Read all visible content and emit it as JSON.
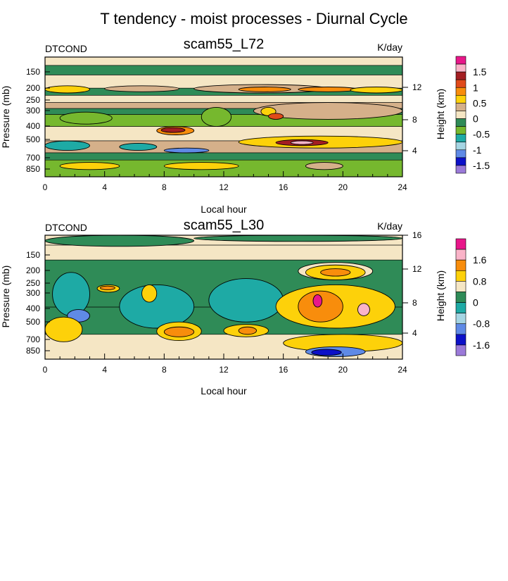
{
  "figure": {
    "title": "T tendency - moist processes - Diurnal Cycle"
  },
  "chart_data": [
    {
      "type": "heatmap",
      "title": "scam55_L72",
      "left_label": "DTCOND",
      "units": "K/day",
      "xlabel": "Local hour",
      "ylabel": "Pressure (mb)",
      "y2label": "Height (km)",
      "xlim": [
        0,
        24
      ],
      "x_ticks": [
        "0",
        "4",
        "8",
        "12",
        "16",
        "20",
        "24"
      ],
      "y_ticks": [
        "150",
        "200",
        "250",
        "300",
        "400",
        "500",
        "700",
        "850"
      ],
      "y2_ticks": [
        "12",
        "8",
        "4"
      ],
      "colorbar": {
        "labels": [
          "1.5",
          "1",
          "0.5",
          "0",
          "-0.5",
          "-1",
          "-1.5"
        ],
        "colors": [
          "#e8178a",
          "#fab3c8",
          "#a31e22",
          "#e04a1a",
          "#f88d0c",
          "#fdd10a",
          "#d5b08a",
          "#f5e6c4",
          "#2f8b57",
          "#76b82e",
          "#1eaaa5",
          "#a5d5e3",
          "#5f8ae6",
          "#0c10c8",
          "#9b7ad9"
        ]
      },
      "regions": [
        {
          "x": 0,
          "y": 0.0,
          "w": 24,
          "h": 0.07,
          "level": 0
        },
        {
          "x": 0,
          "y": 0.07,
          "w": 24,
          "h": 0.08,
          "level": -1
        },
        {
          "x": 0,
          "y": 0.15,
          "w": 24,
          "h": 0.11,
          "level": 0
        },
        {
          "x": 0,
          "y": 0.26,
          "w": 24,
          "h": 0.06,
          "level": -1
        },
        {
          "x": 0,
          "y": 0.32,
          "w": 24,
          "h": 0.06,
          "level": 0
        },
        {
          "x": 0,
          "y": 0.38,
          "w": 24,
          "h": 0.05,
          "level": 1
        },
        {
          "x": 0,
          "y": 0.43,
          "w": 24,
          "h": 0.05,
          "level": -1
        },
        {
          "x": 0,
          "y": 0.48,
          "w": 24,
          "h": 0.1,
          "level": -2
        },
        {
          "x": 0,
          "y": 0.58,
          "w": 24,
          "h": 0.12,
          "level": 0
        },
        {
          "x": 0,
          "y": 0.7,
          "w": 24,
          "h": 0.1,
          "level": 1
        },
        {
          "x": 0,
          "y": 0.8,
          "w": 24,
          "h": 0.2,
          "level": -1
        },
        {
          "x": 0.0,
          "y": 0.24,
          "w": 3.0,
          "h": 0.06,
          "level": 2
        },
        {
          "x": 4.0,
          "y": 0.24,
          "w": 5.0,
          "h": 0.05,
          "level": 1
        },
        {
          "x": 10.0,
          "y": 0.23,
          "w": 9.0,
          "h": 0.07,
          "level": 1
        },
        {
          "x": 13.0,
          "y": 0.25,
          "w": 3.5,
          "h": 0.04,
          "level": 3
        },
        {
          "x": 17.0,
          "y": 0.25,
          "w": 4.0,
          "h": 0.04,
          "level": 3
        },
        {
          "x": 20.5,
          "y": 0.25,
          "w": 3.5,
          "h": 0.05,
          "level": 2
        },
        {
          "x": 1.0,
          "y": 0.46,
          "w": 3.5,
          "h": 0.1,
          "level": -2
        },
        {
          "x": 10.5,
          "y": 0.42,
          "w": 2.0,
          "h": 0.16,
          "level": -2
        },
        {
          "x": 14.0,
          "y": 0.38,
          "w": 10.0,
          "h": 0.14,
          "level": 1
        },
        {
          "x": 14.5,
          "y": 0.42,
          "w": 1.0,
          "h": 0.07,
          "level": 2
        },
        {
          "x": 7.5,
          "y": 0.58,
          "w": 2.5,
          "h": 0.07,
          "level": 3
        },
        {
          "x": 7.8,
          "y": 0.59,
          "w": 1.6,
          "h": 0.04,
          "level": 5
        },
        {
          "x": 15.0,
          "y": 0.47,
          "w": 1.0,
          "h": 0.05,
          "level": 4
        },
        {
          "x": 0.0,
          "y": 0.7,
          "w": 3.0,
          "h": 0.08,
          "level": -3
        },
        {
          "x": 5.0,
          "y": 0.72,
          "w": 2.5,
          "h": 0.06,
          "level": -3
        },
        {
          "x": 8.0,
          "y": 0.76,
          "w": 3.0,
          "h": 0.04,
          "level": -5
        },
        {
          "x": 13.0,
          "y": 0.66,
          "w": 11.0,
          "h": 0.1,
          "level": 2
        },
        {
          "x": 15.5,
          "y": 0.69,
          "w": 3.5,
          "h": 0.05,
          "level": 5
        },
        {
          "x": 16.5,
          "y": 0.7,
          "w": 1.5,
          "h": 0.03,
          "level": 6
        },
        {
          "x": 0.0,
          "y": 0.86,
          "w": 24.0,
          "h": 0.14,
          "level": -2
        },
        {
          "x": 1.0,
          "y": 0.88,
          "w": 4.0,
          "h": 0.06,
          "level": 2
        },
        {
          "x": 8.0,
          "y": 0.88,
          "w": 5.0,
          "h": 0.06,
          "level": 2
        },
        {
          "x": 17.5,
          "y": 0.88,
          "w": 2.5,
          "h": 0.06,
          "level": 1
        }
      ]
    },
    {
      "type": "heatmap",
      "title": "scam55_L30",
      "left_label": "DTCOND",
      "units": "K/day",
      "xlabel": "Local hour",
      "ylabel": "Pressure (mb)",
      "y2label": "Height (km)",
      "xlim": [
        0,
        24
      ],
      "x_ticks": [
        "0",
        "4",
        "8",
        "12",
        "16",
        "20",
        "24"
      ],
      "y_ticks": [
        "150",
        "200",
        "250",
        "300",
        "400",
        "500",
        "700",
        "850"
      ],
      "y2_ticks": [
        "16",
        "12",
        "8",
        "4"
      ],
      "colorbar": {
        "labels": [
          "1.6",
          "0.8",
          "0",
          "-0.8",
          "-1.6"
        ],
        "colors": [
          "#e8178a",
          "#fab3c8",
          "#f88d0c",
          "#fdd10a",
          "#f5e6c4",
          "#2f8b57",
          "#1eaaa5",
          "#a5d5e3",
          "#5f8ae6",
          "#0c10c8",
          "#9b7ad9"
        ]
      },
      "regions": [
        {
          "x": 0,
          "y": 0.0,
          "w": 24,
          "h": 0.08,
          "level": 0
        },
        {
          "x": 0,
          "y": 0.08,
          "w": 24,
          "h": 0.12,
          "level": 0
        },
        {
          "x": 0,
          "y": 0.2,
          "w": 24,
          "h": 0.38,
          "level": -1
        },
        {
          "x": 0,
          "y": 0.58,
          "w": 24,
          "h": 0.22,
          "level": -1
        },
        {
          "x": 0,
          "y": 0.8,
          "w": 24,
          "h": 0.2,
          "level": 0
        },
        {
          "x": 0.0,
          "y": 0.0,
          "w": 10.0,
          "h": 0.09,
          "level": -1
        },
        {
          "x": 10.0,
          "y": 0.0,
          "w": 14.0,
          "h": 0.05,
          "level": -1
        },
        {
          "x": 0.5,
          "y": 0.3,
          "w": 2.5,
          "h": 0.35,
          "level": -2
        },
        {
          "x": 5.0,
          "y": 0.4,
          "w": 5.0,
          "h": 0.35,
          "level": -2
        },
        {
          "x": 11.0,
          "y": 0.35,
          "w": 5.0,
          "h": 0.35,
          "level": -2
        },
        {
          "x": 1.5,
          "y": 0.6,
          "w": 1.5,
          "h": 0.1,
          "level": -4
        },
        {
          "x": 3.5,
          "y": 0.4,
          "w": 1.5,
          "h": 0.06,
          "level": 1
        },
        {
          "x": 3.7,
          "y": 0.41,
          "w": 1.0,
          "h": 0.03,
          "level": 2
        },
        {
          "x": 6.5,
          "y": 0.4,
          "w": 1.0,
          "h": 0.14,
          "level": 1
        },
        {
          "x": 17.0,
          "y": 0.22,
          "w": 5.0,
          "h": 0.14,
          "level": 0
        },
        {
          "x": 17.5,
          "y": 0.24,
          "w": 4.0,
          "h": 0.12,
          "level": 1
        },
        {
          "x": 18.5,
          "y": 0.27,
          "w": 2.0,
          "h": 0.06,
          "level": 2
        },
        {
          "x": 15.5,
          "y": 0.4,
          "w": 8.0,
          "h": 0.35,
          "level": 1
        },
        {
          "x": 17.0,
          "y": 0.45,
          "w": 3.0,
          "h": 0.25,
          "level": 2
        },
        {
          "x": 18.0,
          "y": 0.48,
          "w": 0.6,
          "h": 0.1,
          "level": 4
        },
        {
          "x": 21.0,
          "y": 0.55,
          "w": 0.8,
          "h": 0.1,
          "level": 3
        },
        {
          "x": 0.0,
          "y": 0.66,
          "w": 2.5,
          "h": 0.2,
          "level": 1
        },
        {
          "x": 7.5,
          "y": 0.7,
          "w": 3.0,
          "h": 0.15,
          "level": 1
        },
        {
          "x": 8.0,
          "y": 0.74,
          "w": 2.0,
          "h": 0.08,
          "level": 2
        },
        {
          "x": 12.0,
          "y": 0.72,
          "w": 3.0,
          "h": 0.1,
          "level": 1
        },
        {
          "x": 13.0,
          "y": 0.74,
          "w": 1.2,
          "h": 0.06,
          "level": 2
        },
        {
          "x": 16.0,
          "y": 0.8,
          "w": 8.0,
          "h": 0.14,
          "level": 1
        },
        {
          "x": 17.5,
          "y": 0.9,
          "w": 4.0,
          "h": 0.08,
          "level": -4
        },
        {
          "x": 17.9,
          "y": 0.92,
          "w": 2.0,
          "h": 0.05,
          "level": -5
        }
      ]
    }
  ]
}
